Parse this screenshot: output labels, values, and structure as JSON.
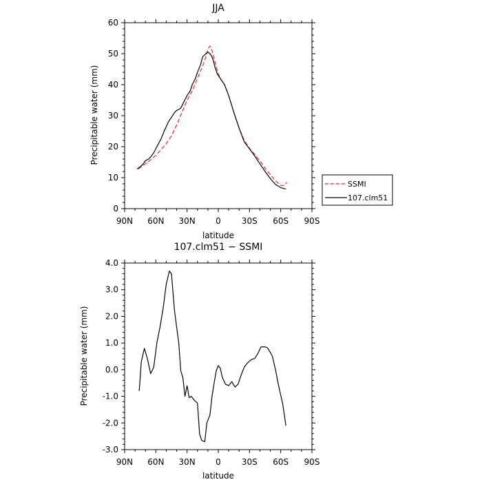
{
  "chart_data": [
    {
      "type": "line",
      "title": "JJA",
      "xlabel": "latitude",
      "ylabel": "Precipitable water (mm)",
      "xlim": [
        90,
        -90
      ],
      "ylim": [
        0,
        60
      ],
      "xticks": [
        90,
        60,
        30,
        0,
        -30,
        -60,
        -90
      ],
      "xtick_labels": [
        "90N",
        "60N",
        "30N",
        "0",
        "30S",
        "60S",
        "90S"
      ],
      "yticks": [
        0,
        10,
        20,
        30,
        40,
        50,
        60
      ],
      "ytick_labels": [
        "0",
        "10",
        "20",
        "30",
        "40",
        "50",
        "60"
      ],
      "legend_position": "right",
      "series": [
        {
          "name": "SSMI",
          "color": "#e8262d",
          "dash": "dashed",
          "x": [
            77,
            72,
            66,
            60,
            55,
            50,
            45,
            40,
            35,
            30,
            25,
            20,
            15,
            12,
            10,
            8,
            6,
            3,
            0,
            -3,
            -6,
            -10,
            -15,
            -20,
            -25,
            -30,
            -35,
            -40,
            -45,
            -50,
            -55,
            -60,
            -63,
            -66
          ],
          "y": [
            12.8,
            14,
            15.5,
            17.2,
            19,
            21,
            23.5,
            27,
            31,
            35,
            38,
            42,
            46,
            49,
            51.5,
            52.5,
            51,
            47,
            43.5,
            41.5,
            40,
            36.5,
            31,
            26,
            22,
            19.5,
            17.5,
            15.5,
            13,
            11,
            9,
            7.5,
            7.5,
            8.5
          ]
        },
        {
          "name": "107.clm51",
          "color": "#000000",
          "dash": "solid",
          "x": [
            78,
            75,
            72,
            70,
            67,
            65,
            62,
            59,
            55,
            52,
            48,
            45,
            42,
            40,
            38,
            36,
            33,
            30,
            27,
            25,
            22,
            20,
            17,
            15,
            12,
            10,
            8,
            6,
            5,
            3,
            1,
            0,
            -3,
            -6,
            -10,
            -15,
            -20,
            -25,
            -30,
            -35,
            -40,
            -45,
            -50,
            -55,
            -60,
            -65
          ],
          "y": [
            12.8,
            13.5,
            14.5,
            15.5,
            16,
            16.7,
            18,
            20,
            22.5,
            25,
            28,
            29.5,
            31,
            31.7,
            32,
            32.5,
            34.5,
            36.5,
            38,
            40,
            42,
            44,
            46.5,
            49,
            50,
            50.5,
            50,
            49,
            48,
            45.5,
            43.5,
            43,
            41.5,
            40,
            36.5,
            31,
            26,
            21.5,
            19.3,
            17,
            14.5,
            12,
            9.7,
            7.8,
            6.8,
            6.3
          ]
        }
      ]
    },
    {
      "type": "line",
      "title": "107.clm51 − SSMI",
      "xlabel": "latitude",
      "ylabel": "Precipitable water (mm)",
      "xlim": [
        90,
        -90
      ],
      "ylim": [
        -3,
        4
      ],
      "xticks": [
        90,
        60,
        30,
        0,
        -30,
        -60,
        -90
      ],
      "xtick_labels": [
        "90N",
        "60N",
        "30N",
        "0",
        "30S",
        "60S",
        "90S"
      ],
      "yticks": [
        -3,
        -2,
        -1,
        0,
        1,
        2,
        3,
        4
      ],
      "ytick_labels": [
        "-3.0",
        "-2.0",
        "-1.0",
        "0.0",
        "1.0",
        "2.0",
        "3.0",
        "4.0"
      ],
      "series": [
        {
          "color": "#000000",
          "dash": "solid",
          "x": [
            76,
            74,
            71,
            68,
            65,
            62,
            59,
            56,
            53,
            50,
            47,
            45,
            42,
            38,
            36,
            34,
            32,
            30,
            28,
            26,
            23,
            20,
            18,
            16,
            13,
            11,
            8,
            6,
            4,
            2,
            0,
            -2,
            -4,
            -7,
            -10,
            -13,
            -16,
            -19,
            -22,
            -25,
            -28,
            -32,
            -35,
            -38,
            -41,
            -44,
            -47,
            -49,
            -52,
            -55,
            -58,
            -62,
            -65
          ],
          "y": [
            -0.8,
            0.3,
            0.8,
            0.4,
            -0.15,
            0.1,
            1,
            1.6,
            2.3,
            3.2,
            3.7,
            3.6,
            2.2,
            1,
            -0.05,
            -0.3,
            -1,
            -0.6,
            -1.05,
            -1,
            -1.15,
            -1.25,
            -2.4,
            -2.65,
            -2.7,
            -2,
            -1.7,
            -1,
            -0.5,
            -0.05,
            0.15,
            0.05,
            -0.3,
            -0.55,
            -0.6,
            -0.45,
            -0.65,
            -0.55,
            -0.2,
            0.1,
            0.25,
            0.38,
            0.42,
            0.6,
            0.85,
            0.86,
            0.83,
            0.72,
            0.5,
            0,
            -0.6,
            -1.3,
            -2.1
          ]
        }
      ]
    }
  ]
}
